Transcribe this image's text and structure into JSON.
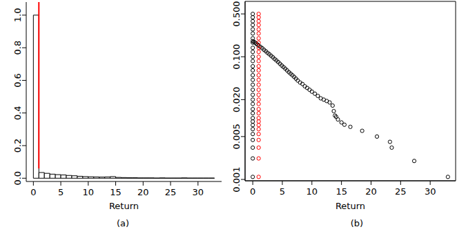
{
  "chart_data": [
    {
      "type": "histogram",
      "subtitle": "(a)",
      "xlabel": "Return",
      "color": "#000000",
      "bins": [
        0,
        1,
        2,
        3,
        4,
        5,
        6,
        7,
        8,
        9,
        10,
        11,
        12,
        13,
        14,
        15,
        16,
        17,
        18,
        19,
        20,
        21,
        22,
        23,
        24,
        25,
        26,
        27,
        28,
        29,
        30,
        31,
        32,
        33
      ],
      "counts": [
        1.0,
        0.035,
        0.03,
        0.025,
        0.022,
        0.02,
        0.017,
        0.015,
        0.012,
        0.01,
        0.009,
        0.008,
        0.007,
        0.008,
        0.01,
        0.005,
        0.004,
        0.003,
        0.003,
        0.002,
        0.002,
        0.002,
        0.001,
        0.002,
        0.001,
        0.001,
        0.001,
        0.002,
        0.001,
        0.001,
        0.001,
        0.001,
        0.001
      ],
      "reference_line": {
        "x": 1,
        "y": [
          0.06,
          1.08
        ],
        "color": "#ff0000"
      },
      "xlim": [
        -1.3,
        34.3
      ],
      "xticks": [
        0,
        5,
        10,
        15,
        20,
        25,
        30
      ],
      "ylim": [
        -0.02,
        1.08
      ],
      "yticks": [
        {
          "value": 0,
          "label": "0.0"
        },
        {
          "value": 0.2,
          "label": "0.2"
        },
        {
          "value": 0.4,
          "label": "0.4"
        },
        {
          "value": 0.6,
          "label": "0.6"
        },
        {
          "value": 0.8,
          "label": "0.8"
        },
        {
          "value": 1,
          "label": "1.0"
        }
      ]
    },
    {
      "type": "scatter",
      "subtitle": "(b)",
      "xlabel": "Return",
      "log": "y",
      "marker": "open_circle",
      "xlim": [
        -1.3,
        34.3
      ],
      "xticks": [
        0,
        5,
        10,
        15,
        20,
        25,
        30
      ],
      "ylim": [
        0.00095,
        0.8
      ],
      "yticks": [
        0.001,
        0.005,
        {
          "value": 0.02,
          "label": "0.020"
        },
        {
          "value": 0.1,
          "label": "0.100"
        },
        {
          "value": 0.5,
          "label": "0.500"
        }
      ],
      "series": [
        {
          "color": "#000000",
          "x": [
            0,
            0,
            0,
            0,
            0,
            0,
            0,
            0,
            0,
            0,
            0,
            0,
            0,
            0,
            0,
            0,
            0,
            0,
            0,
            0,
            0,
            0,
            0,
            0,
            0,
            0,
            0,
            0,
            0,
            0,
            0,
            0
          ],
          "values": [
            0.0011,
            0.0022,
            0.0033,
            0.0044,
            0.0055,
            0.0066,
            0.0077,
            0.0088,
            0.01,
            0.012,
            0.014,
            0.017,
            0.02,
            0.024,
            0.029,
            0.035,
            0.042,
            0.05,
            0.06,
            0.07,
            0.085,
            0.1,
            0.12,
            0.14,
            0.17,
            0.2,
            0.24,
            0.28,
            0.33,
            0.38,
            0.44,
            0.5
          ]
        },
        {
          "color": "#000000",
          "x": [
            0,
            0.2,
            0.4,
            0.6,
            0.8,
            1.0,
            1.3,
            1.6,
            1.9,
            2.2,
            2.5,
            2.8,
            3.1,
            3.4,
            3.7,
            4.0,
            4.3,
            4.6,
            4.9,
            5.2,
            5.5,
            5.8,
            6.1,
            6.4,
            6.7,
            7.0,
            7.3,
            7.6,
            8.0,
            8.4,
            8.8,
            9.2,
            9.6,
            10.0,
            10.5,
            11.0,
            11.5,
            12.0,
            12.5,
            13.0,
            13.5,
            13.7,
            13.9,
            14.1,
            14.4,
            15.0,
            15.5,
            16.5,
            18.5,
            21.0,
            23.2,
            23.5,
            27.3,
            33.0
          ],
          "values": [
            0.18,
            0.175,
            0.17,
            0.163,
            0.158,
            0.152,
            0.145,
            0.138,
            0.13,
            0.123,
            0.116,
            0.11,
            0.104,
            0.098,
            0.092,
            0.087,
            0.082,
            0.077,
            0.072,
            0.068,
            0.064,
            0.06,
            0.056,
            0.053,
            0.05,
            0.047,
            0.044,
            0.041,
            0.038,
            0.036,
            0.033,
            0.031,
            0.029,
            0.027,
            0.025,
            0.023,
            0.021,
            0.02,
            0.019,
            0.018,
            0.016,
            0.013,
            0.011,
            0.0105,
            0.0095,
            0.0085,
            0.0078,
            0.0072,
            0.0062,
            0.005,
            0.0041,
            0.0033,
            0.002,
            0.0011
          ]
        },
        {
          "color": "#ff0000",
          "x": [
            1,
            1,
            1,
            1,
            1,
            1,
            1,
            1,
            1,
            1,
            1,
            1,
            1,
            1,
            1,
            1,
            1,
            1,
            1,
            1,
            1,
            1,
            1,
            1,
            1,
            1,
            1,
            1,
            1,
            1,
            1,
            1
          ],
          "values": [
            0.0011,
            0.0022,
            0.0033,
            0.0044,
            0.0055,
            0.0066,
            0.0077,
            0.0088,
            0.01,
            0.012,
            0.014,
            0.017,
            0.02,
            0.024,
            0.029,
            0.035,
            0.042,
            0.05,
            0.06,
            0.07,
            0.085,
            0.1,
            0.12,
            0.14,
            0.17,
            0.2,
            0.24,
            0.28,
            0.33,
            0.38,
            0.44,
            0.5
          ]
        }
      ]
    }
  ]
}
